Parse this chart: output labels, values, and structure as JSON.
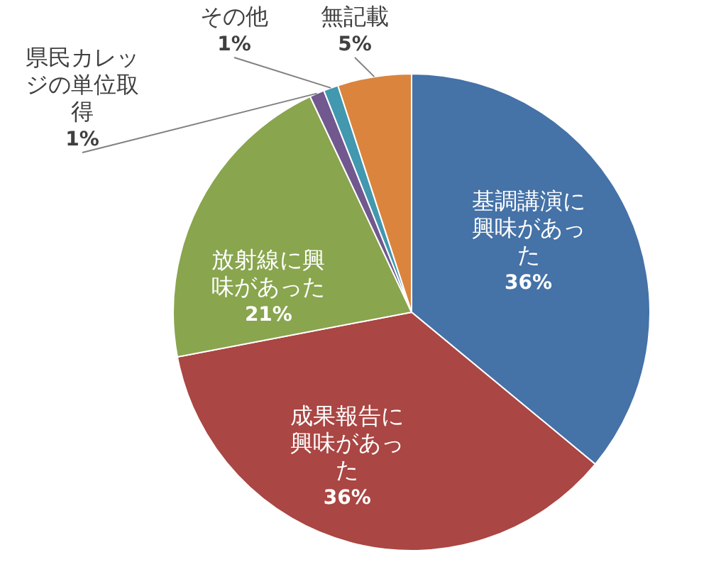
{
  "chart_data": {
    "type": "pie",
    "categories": [
      "基調講演に興味があった",
      "成果報告に興味があった",
      "放射線に興味があった",
      "県民カレッジの単位取得",
      "その他",
      "無記載"
    ],
    "values": [
      36,
      36,
      21,
      1,
      1,
      5
    ],
    "value_labels": [
      "36%",
      "36%",
      "21%",
      "1%",
      "1%",
      "5%"
    ],
    "colors": [
      "#4572a7",
      "#aa4643",
      "#89a54e",
      "#71588f",
      "#4198af",
      "#db843d"
    ],
    "legend": false
  }
}
